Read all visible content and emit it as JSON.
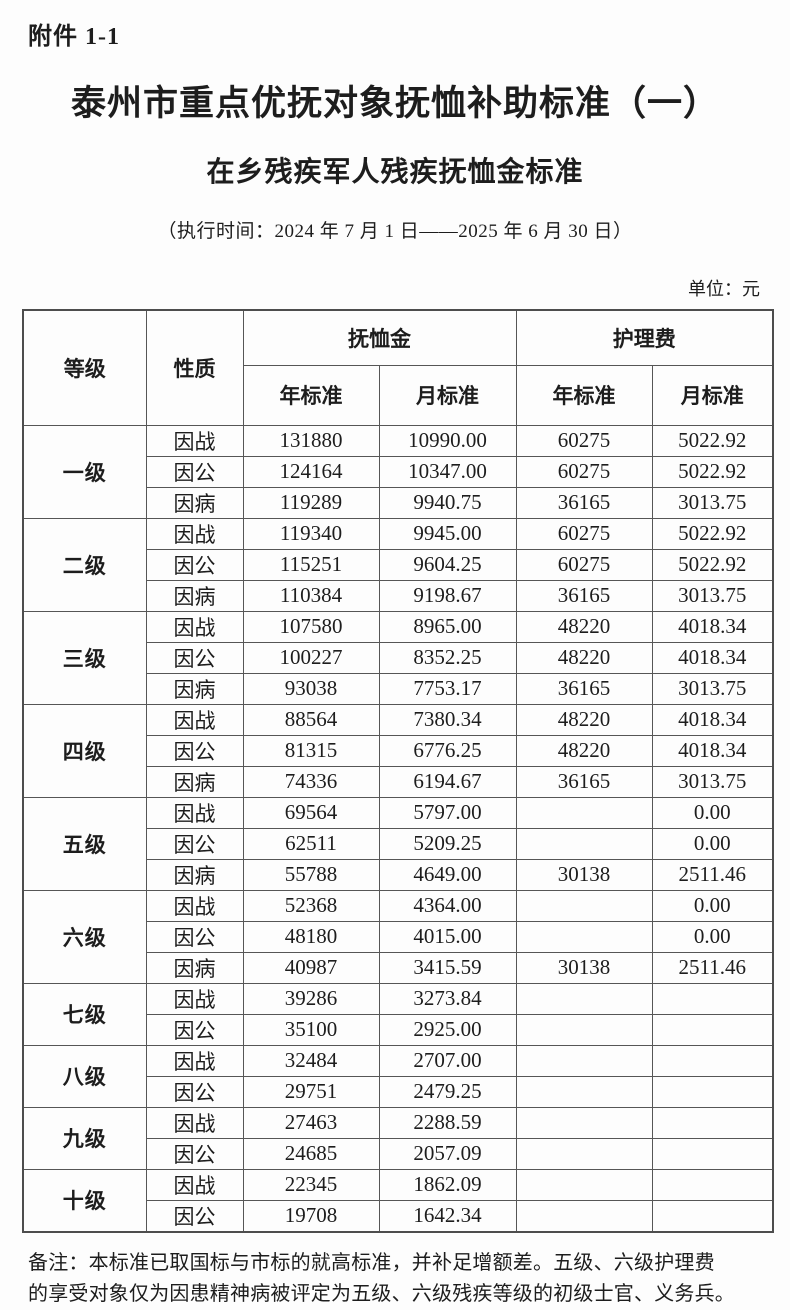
{
  "page": {
    "attachment_label": "附件 1-1",
    "title": "泰州市重点优抚对象抚恤补助标准（一）",
    "subtitle": "在乡残疾军人残疾抚恤金标准",
    "period": "（执行时间：2024 年 7 月 1 日——2025 年 6 月 30 日）",
    "unit_label": "单位：元",
    "note_line1": "备注：本标准已取国标与市标的就高标准，并补足增额差。五级、六级护理费",
    "note_line2": "的享受对象仅为因患精神病被评定为五级、六级残疾等级的初级士官、义务兵。"
  },
  "colors": {
    "text": "#1d1d1d",
    "border": "#565656",
    "background": "#fdfdfd"
  },
  "table": {
    "headers": {
      "grade": "等级",
      "nature": "性质",
      "pension_group": "抚恤金",
      "nursing_group": "护理费",
      "pension_year": "年标准",
      "pension_month": "月标准",
      "nursing_year": "年标准",
      "nursing_month": "月标准"
    },
    "groups": [
      {
        "grade": "一级",
        "rows": [
          {
            "nature": "因战",
            "pension_year": "131880",
            "pension_month": "10990.00",
            "nursing_year": "60275",
            "nursing_month": "5022.92"
          },
          {
            "nature": "因公",
            "pension_year": "124164",
            "pension_month": "10347.00",
            "nursing_year": "60275",
            "nursing_month": "5022.92"
          },
          {
            "nature": "因病",
            "pension_year": "119289",
            "pension_month": "9940.75",
            "nursing_year": "36165",
            "nursing_month": "3013.75"
          }
        ]
      },
      {
        "grade": "二级",
        "rows": [
          {
            "nature": "因战",
            "pension_year": "119340",
            "pension_month": "9945.00",
            "nursing_year": "60275",
            "nursing_month": "5022.92"
          },
          {
            "nature": "因公",
            "pension_year": "115251",
            "pension_month": "9604.25",
            "nursing_year": "60275",
            "nursing_month": "5022.92"
          },
          {
            "nature": "因病",
            "pension_year": "110384",
            "pension_month": "9198.67",
            "nursing_year": "36165",
            "nursing_month": "3013.75"
          }
        ]
      },
      {
        "grade": "三级",
        "rows": [
          {
            "nature": "因战",
            "pension_year": "107580",
            "pension_month": "8965.00",
            "nursing_year": "48220",
            "nursing_month": "4018.34"
          },
          {
            "nature": "因公",
            "pension_year": "100227",
            "pension_month": "8352.25",
            "nursing_year": "48220",
            "nursing_month": "4018.34"
          },
          {
            "nature": "因病",
            "pension_year": "93038",
            "pension_month": "7753.17",
            "nursing_year": "36165",
            "nursing_month": "3013.75"
          }
        ]
      },
      {
        "grade": "四级",
        "rows": [
          {
            "nature": "因战",
            "pension_year": "88564",
            "pension_month": "7380.34",
            "nursing_year": "48220",
            "nursing_month": "4018.34"
          },
          {
            "nature": "因公",
            "pension_year": "81315",
            "pension_month": "6776.25",
            "nursing_year": "48220",
            "nursing_month": "4018.34"
          },
          {
            "nature": "因病",
            "pension_year": "74336",
            "pension_month": "6194.67",
            "nursing_year": "36165",
            "nursing_month": "3013.75"
          }
        ]
      },
      {
        "grade": "五级",
        "rows": [
          {
            "nature": "因战",
            "pension_year": "69564",
            "pension_month": "5797.00",
            "nursing_year": "",
            "nursing_month": "0.00"
          },
          {
            "nature": "因公",
            "pension_year": "62511",
            "pension_month": "5209.25",
            "nursing_year": "",
            "nursing_month": "0.00"
          },
          {
            "nature": "因病",
            "pension_year": "55788",
            "pension_month": "4649.00",
            "nursing_year": "30138",
            "nursing_month": "2511.46"
          }
        ]
      },
      {
        "grade": "六级",
        "rows": [
          {
            "nature": "因战",
            "pension_year": "52368",
            "pension_month": "4364.00",
            "nursing_year": "",
            "nursing_month": "0.00"
          },
          {
            "nature": "因公",
            "pension_year": "48180",
            "pension_month": "4015.00",
            "nursing_year": "",
            "nursing_month": "0.00"
          },
          {
            "nature": "因病",
            "pension_year": "40987",
            "pension_month": "3415.59",
            "nursing_year": "30138",
            "nursing_month": "2511.46"
          }
        ]
      },
      {
        "grade": "七级",
        "rows": [
          {
            "nature": "因战",
            "pension_year": "39286",
            "pension_month": "3273.84",
            "nursing_year": "",
            "nursing_month": ""
          },
          {
            "nature": "因公",
            "pension_year": "35100",
            "pension_month": "2925.00",
            "nursing_year": "",
            "nursing_month": ""
          }
        ]
      },
      {
        "grade": "八级",
        "rows": [
          {
            "nature": "因战",
            "pension_year": "32484",
            "pension_month": "2707.00",
            "nursing_year": "",
            "nursing_month": ""
          },
          {
            "nature": "因公",
            "pension_year": "29751",
            "pension_month": "2479.25",
            "nursing_year": "",
            "nursing_month": ""
          }
        ]
      },
      {
        "grade": "九级",
        "rows": [
          {
            "nature": "因战",
            "pension_year": "27463",
            "pension_month": "2288.59",
            "nursing_year": "",
            "nursing_month": ""
          },
          {
            "nature": "因公",
            "pension_year": "24685",
            "pension_month": "2057.09",
            "nursing_year": "",
            "nursing_month": ""
          }
        ]
      },
      {
        "grade": "十级",
        "rows": [
          {
            "nature": "因战",
            "pension_year": "22345",
            "pension_month": "1862.09",
            "nursing_year": "",
            "nursing_month": ""
          },
          {
            "nature": "因公",
            "pension_year": "19708",
            "pension_month": "1642.34",
            "nursing_year": "",
            "nursing_month": ""
          }
        ]
      }
    ]
  }
}
